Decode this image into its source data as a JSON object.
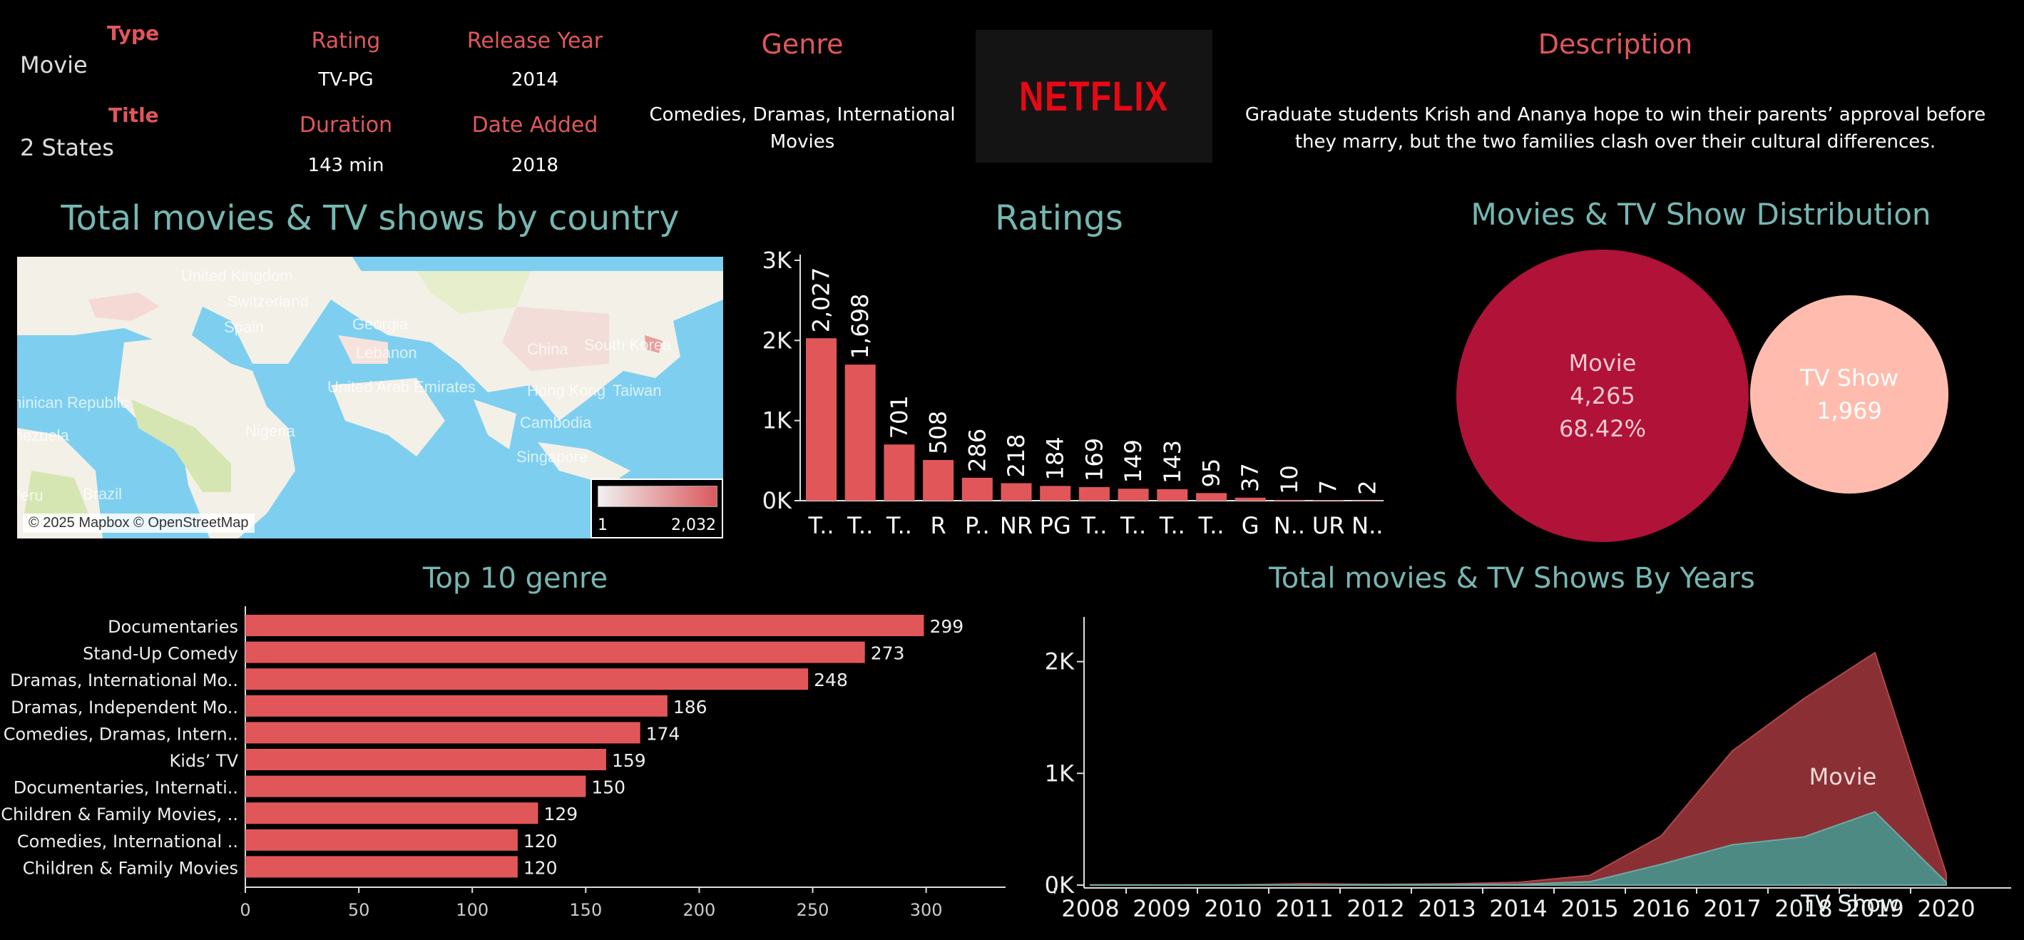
{
  "details": {
    "type_label": "Type",
    "type_value": "Movie",
    "title_label": "Title",
    "title_value": "2 States",
    "rating_label": "Rating",
    "rating_value": "TV-PG",
    "duration_label": "Duration",
    "duration_value": "143 min",
    "release_label": "Release Year",
    "release_value": "2014",
    "date_added_label": "Date Added",
    "date_added_value": "2018",
    "genre_label": "Genre",
    "genre_value": "Comedies, Dramas, International Movies",
    "logo_text": "NETFLIX",
    "description_label": "Description",
    "description_value": "Graduate students Krish and Ananya hope to win their parents’ approval before they marry, but the two families clash over their cultural differences."
  },
  "map": {
    "title": "Total movies & TV shows by country",
    "attribution": "© 2025 Mapbox © OpenStreetMap",
    "legend_min": "1",
    "legend_max": "2,032",
    "places": [
      "United Kingdom",
      "Switzerland",
      "Spain",
      "Georgia",
      "Lebanon",
      "China",
      "South Korea",
      "United Arab Emirates",
      "Hong Kong",
      "Taiwan",
      "Cambodia",
      "Singapore",
      "Nigeria",
      "Venezuela",
      "Brazil",
      "Dominican Republic",
      "Peru"
    ],
    "colors": {
      "water": "#7ecfef",
      "land": "#f3f0e8",
      "high": "#d9595c"
    }
  },
  "chart_data": [
    {
      "type": "bar",
      "title": "Ratings",
      "categories": [
        "T..",
        "T..",
        "T..",
        "R",
        "P..",
        "NR",
        "PG",
        "T..",
        "T..",
        "T..",
        "T..",
        "G",
        "N..",
        "UR",
        "N.."
      ],
      "values": [
        2027,
        1698,
        701,
        508,
        286,
        218,
        184,
        169,
        149,
        143,
        95,
        37,
        10,
        7,
        2
      ],
      "data_labels": [
        "2,027",
        "1,698",
        "701",
        "508",
        "286",
        "218",
        "184",
        "169",
        "149",
        "143",
        "95",
        "37",
        "10",
        "7",
        "2"
      ],
      "yticks": [
        "0K",
        "1K",
        "2K",
        "3K"
      ],
      "ylim": [
        0,
        3000
      ],
      "color": "#e15759"
    },
    {
      "type": "bubble",
      "title": "Movies & TV Show Distribution",
      "series": [
        {
          "name": "Movie",
          "value": 4265,
          "label": "4,265",
          "percent": "68.42%",
          "color": "#b01238"
        },
        {
          "name": "TV Show",
          "value": 1969,
          "label": "1,969",
          "color": "#ffbcae"
        }
      ]
    },
    {
      "type": "bar",
      "orientation": "horizontal",
      "title": "Top 10 genre",
      "categories": [
        "Documentaries",
        "Stand-Up Comedy",
        "Dramas, International Mo..",
        "Dramas, Independent Mo..",
        "Comedies, Dramas, Intern..",
        "Kids’ TV",
        "Documentaries, Internati..",
        "Children & Family Movies, ..",
        "Comedies, International ..",
        "Children & Family Movies"
      ],
      "values": [
        299,
        273,
        248,
        186,
        174,
        159,
        150,
        129,
        120,
        120
      ],
      "xticks": [
        "0",
        "50",
        "100",
        "150",
        "200",
        "250",
        "300"
      ],
      "xlim": [
        0,
        335
      ],
      "color": "#e15759"
    },
    {
      "type": "area",
      "title": "Total movies & TV Shows By Years",
      "x": [
        "2008",
        "2009",
        "2010",
        "2011",
        "2012",
        "2013",
        "2014",
        "2015",
        "2016",
        "2017",
        "2018",
        "2019",
        "2020"
      ],
      "series": [
        {
          "name": "Movie",
          "values": [
            1,
            2,
            1,
            13,
            3,
            6,
            19,
            56,
            253,
            839,
            1237,
            1424,
            76
          ],
          "color": "#8a3034"
        },
        {
          "name": "TV Show",
          "values": [
            1,
            0,
            1,
            0,
            3,
            5,
            6,
            30,
            185,
            361,
            430,
            656,
            25
          ],
          "color": "#4e8a84"
        }
      ],
      "yticks": [
        "0K",
        "1K",
        "2K"
      ],
      "ylim": [
        0,
        2400
      ]
    }
  ]
}
